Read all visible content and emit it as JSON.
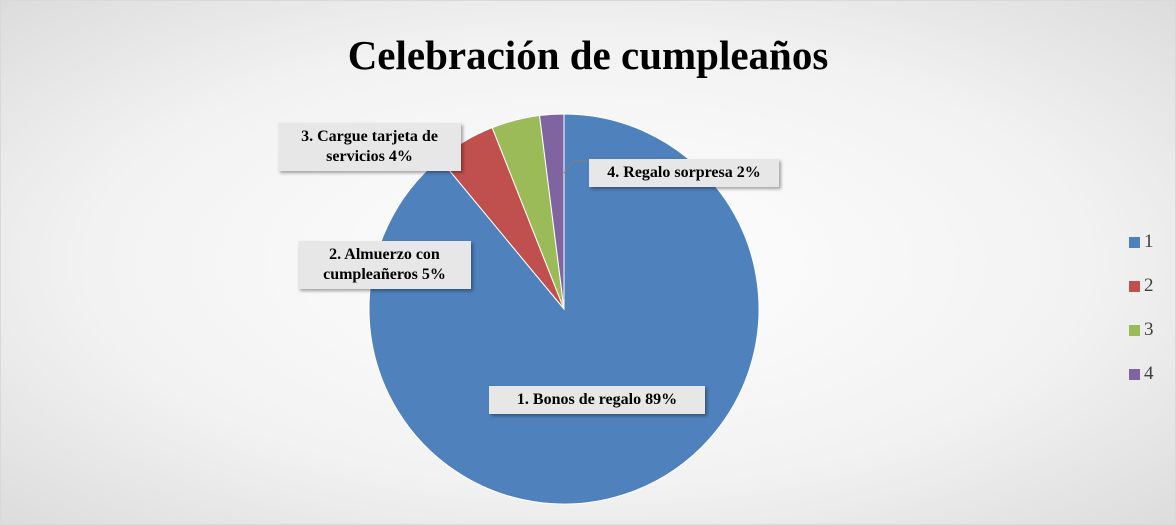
{
  "chart_data": {
    "type": "pie",
    "title": "Celebración de cumpleaños",
    "categories": [
      "1",
      "2",
      "3",
      "4"
    ],
    "values": [
      89,
      5,
      4,
      2
    ],
    "value_labels": [
      "1. Bonos de regalo 89%",
      "2. Almuerzo con cumpleañeros 5%",
      "3. Cargue tarjeta de servicios 4%",
      "4. Regalo sorpresa 2%"
    ],
    "colors": [
      "#4f81bd",
      "#c0504d",
      "#9bbb59",
      "#8064a2"
    ],
    "legend": "right"
  }
}
